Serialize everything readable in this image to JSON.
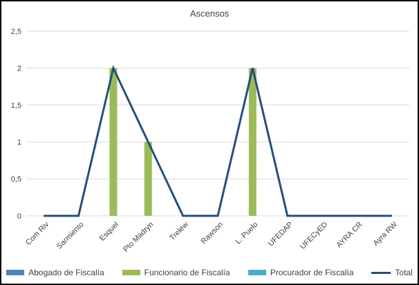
{
  "chart_data": {
    "type": "bar",
    "subtype": "bar-line-combo",
    "title": "Ascensos",
    "xlabel": "",
    "ylabel": "",
    "categories": [
      "Com Riv",
      "Sarmiento",
      "Esquel",
      "Pto Madryn",
      "Trelew",
      "Rawson",
      "L. Puelo",
      "UFEDAP",
      "UFECyED",
      "AYRA CR",
      "Ayra RW"
    ],
    "series": [
      {
        "name": "Abogado de Fiscalía",
        "render": "bar",
        "color": "#4F81BD",
        "values": [
          0,
          0,
          0,
          0,
          0,
          0,
          0,
          0,
          0,
          0,
          0
        ]
      },
      {
        "name": "Funcionario de Fiscalía",
        "render": "bar",
        "color": "#9BBB59",
        "values": [
          0,
          0,
          2,
          1,
          0,
          0,
          2,
          0,
          0,
          0,
          0
        ]
      },
      {
        "name": "Procurador de Fiscalía",
        "render": "bar",
        "color": "#4BACC6",
        "values": [
          0,
          0,
          0,
          0,
          0,
          0,
          0,
          0,
          0,
          0,
          0
        ]
      },
      {
        "name": "Total",
        "render": "line",
        "color": "#254F78",
        "values": [
          0,
          0,
          2,
          1,
          0,
          0,
          2,
          0,
          0,
          0,
          0
        ]
      }
    ],
    "ylim": [
      0,
      2.5
    ],
    "ytick_values": [
      0,
      0.5,
      1,
      1.5,
      2,
      2.5
    ],
    "ytick_labels": [
      "0",
      "0,5",
      "1",
      "1,5",
      "2",
      "2,5"
    ],
    "grid": "horizontal",
    "legend_position": "bottom",
    "colors": {
      "gridline": "#D9D9D9",
      "axis_text": "#404040",
      "title_text": "#404040",
      "frame_border": "#000000",
      "background": "#FFFFFF"
    }
  }
}
